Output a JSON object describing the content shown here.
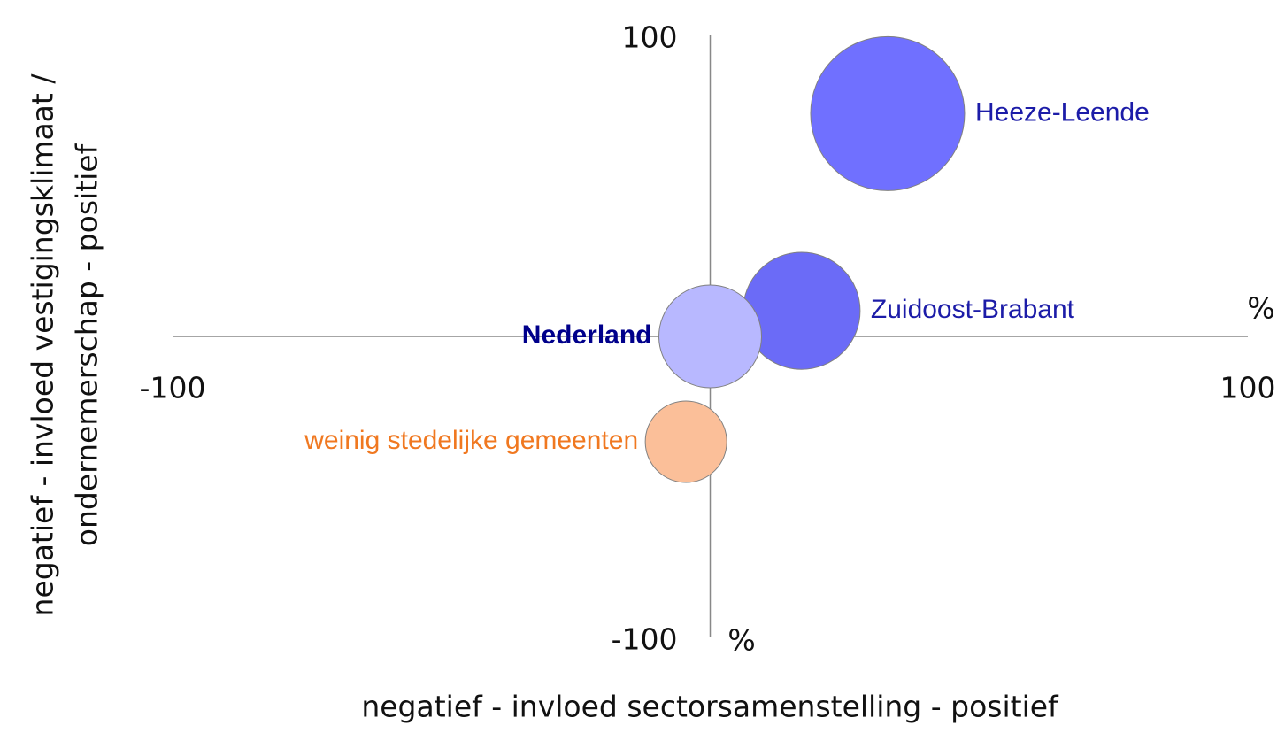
{
  "chart_data": {
    "type": "bubble",
    "x_label": "negatief - invloed sectorsamenstelling - positief",
    "y_label": [
      "negatief - invloed vestigingsklimaat /",
      "ondernemerschap - positief"
    ],
    "x_unit": "%",
    "y_unit": "%",
    "xlim": [
      -100,
      100
    ],
    "ylim": [
      -100,
      100
    ],
    "xticks": [
      -100,
      100
    ],
    "yticks": [
      -100,
      100
    ],
    "series": [
      {
        "name": "Heeze-Leende",
        "color": "#7070ff",
        "label_color": "#1c1ca8",
        "x": [
          33
        ],
        "values": [
          74
        ],
        "sizes": [
          225
        ]
      },
      {
        "name": "Zuidoost-Brabant",
        "color": "#6b6bf7",
        "label_color": "#1c1ca8",
        "x": [
          17
        ],
        "values": [
          8.5
        ],
        "sizes": [
          130
        ]
      },
      {
        "name": "Nederland",
        "color": "#b8b8ff",
        "label_color": "#00008b",
        "bold": true,
        "x": [
          0
        ],
        "values": [
          0
        ],
        "sizes": [
          100
        ]
      },
      {
        "name": "weinig stedelijke gemeenten",
        "color": "#fbbf99",
        "label_color": "#f07820",
        "x": [
          -4.5
        ],
        "values": [
          -35
        ],
        "sizes": [
          63
        ]
      }
    ]
  }
}
